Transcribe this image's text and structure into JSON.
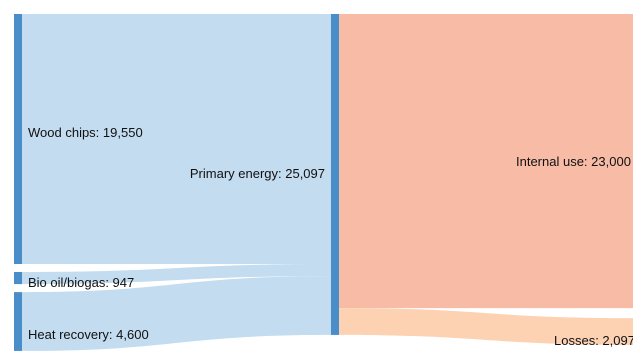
{
  "colors": {
    "source_node": "#4a8ec9",
    "source_link": "#c3dcef",
    "internal_link": "#f7bba6",
    "losses_link": "#fcd2b3"
  },
  "nodes": {
    "wood_chips": {
      "name": "Wood chips",
      "value": 19550,
      "label": "Wood chips: 19,550"
    },
    "bio_oil_biogas": {
      "name": "Bio oil/biogas",
      "value": 947,
      "label": "Bio oil/biogas: 947"
    },
    "heat_recovery": {
      "name": "Heat recovery",
      "value": 4600,
      "label": "Heat recovery: 4,600"
    },
    "primary_energy": {
      "name": "Primary energy",
      "value": 25097,
      "label": "Primary energy: 25,097"
    },
    "internal_use": {
      "name": "Internal use",
      "value": 23000,
      "label": "Internal use: 23,000"
    },
    "losses": {
      "name": "Losses",
      "value": 2097,
      "label": "Losses: 2,097"
    }
  },
  "links": [
    {
      "source": "Wood chips",
      "target": "Primary energy",
      "value": 19550
    },
    {
      "source": "Bio oil/biogas",
      "target": "Primary energy",
      "value": 947
    },
    {
      "source": "Heat recovery",
      "target": "Primary energy",
      "value": 4600
    },
    {
      "source": "Primary energy",
      "target": "Internal use",
      "value": 23000
    },
    {
      "source": "Primary energy",
      "target": "Losses",
      "value": 2097
    }
  ]
}
